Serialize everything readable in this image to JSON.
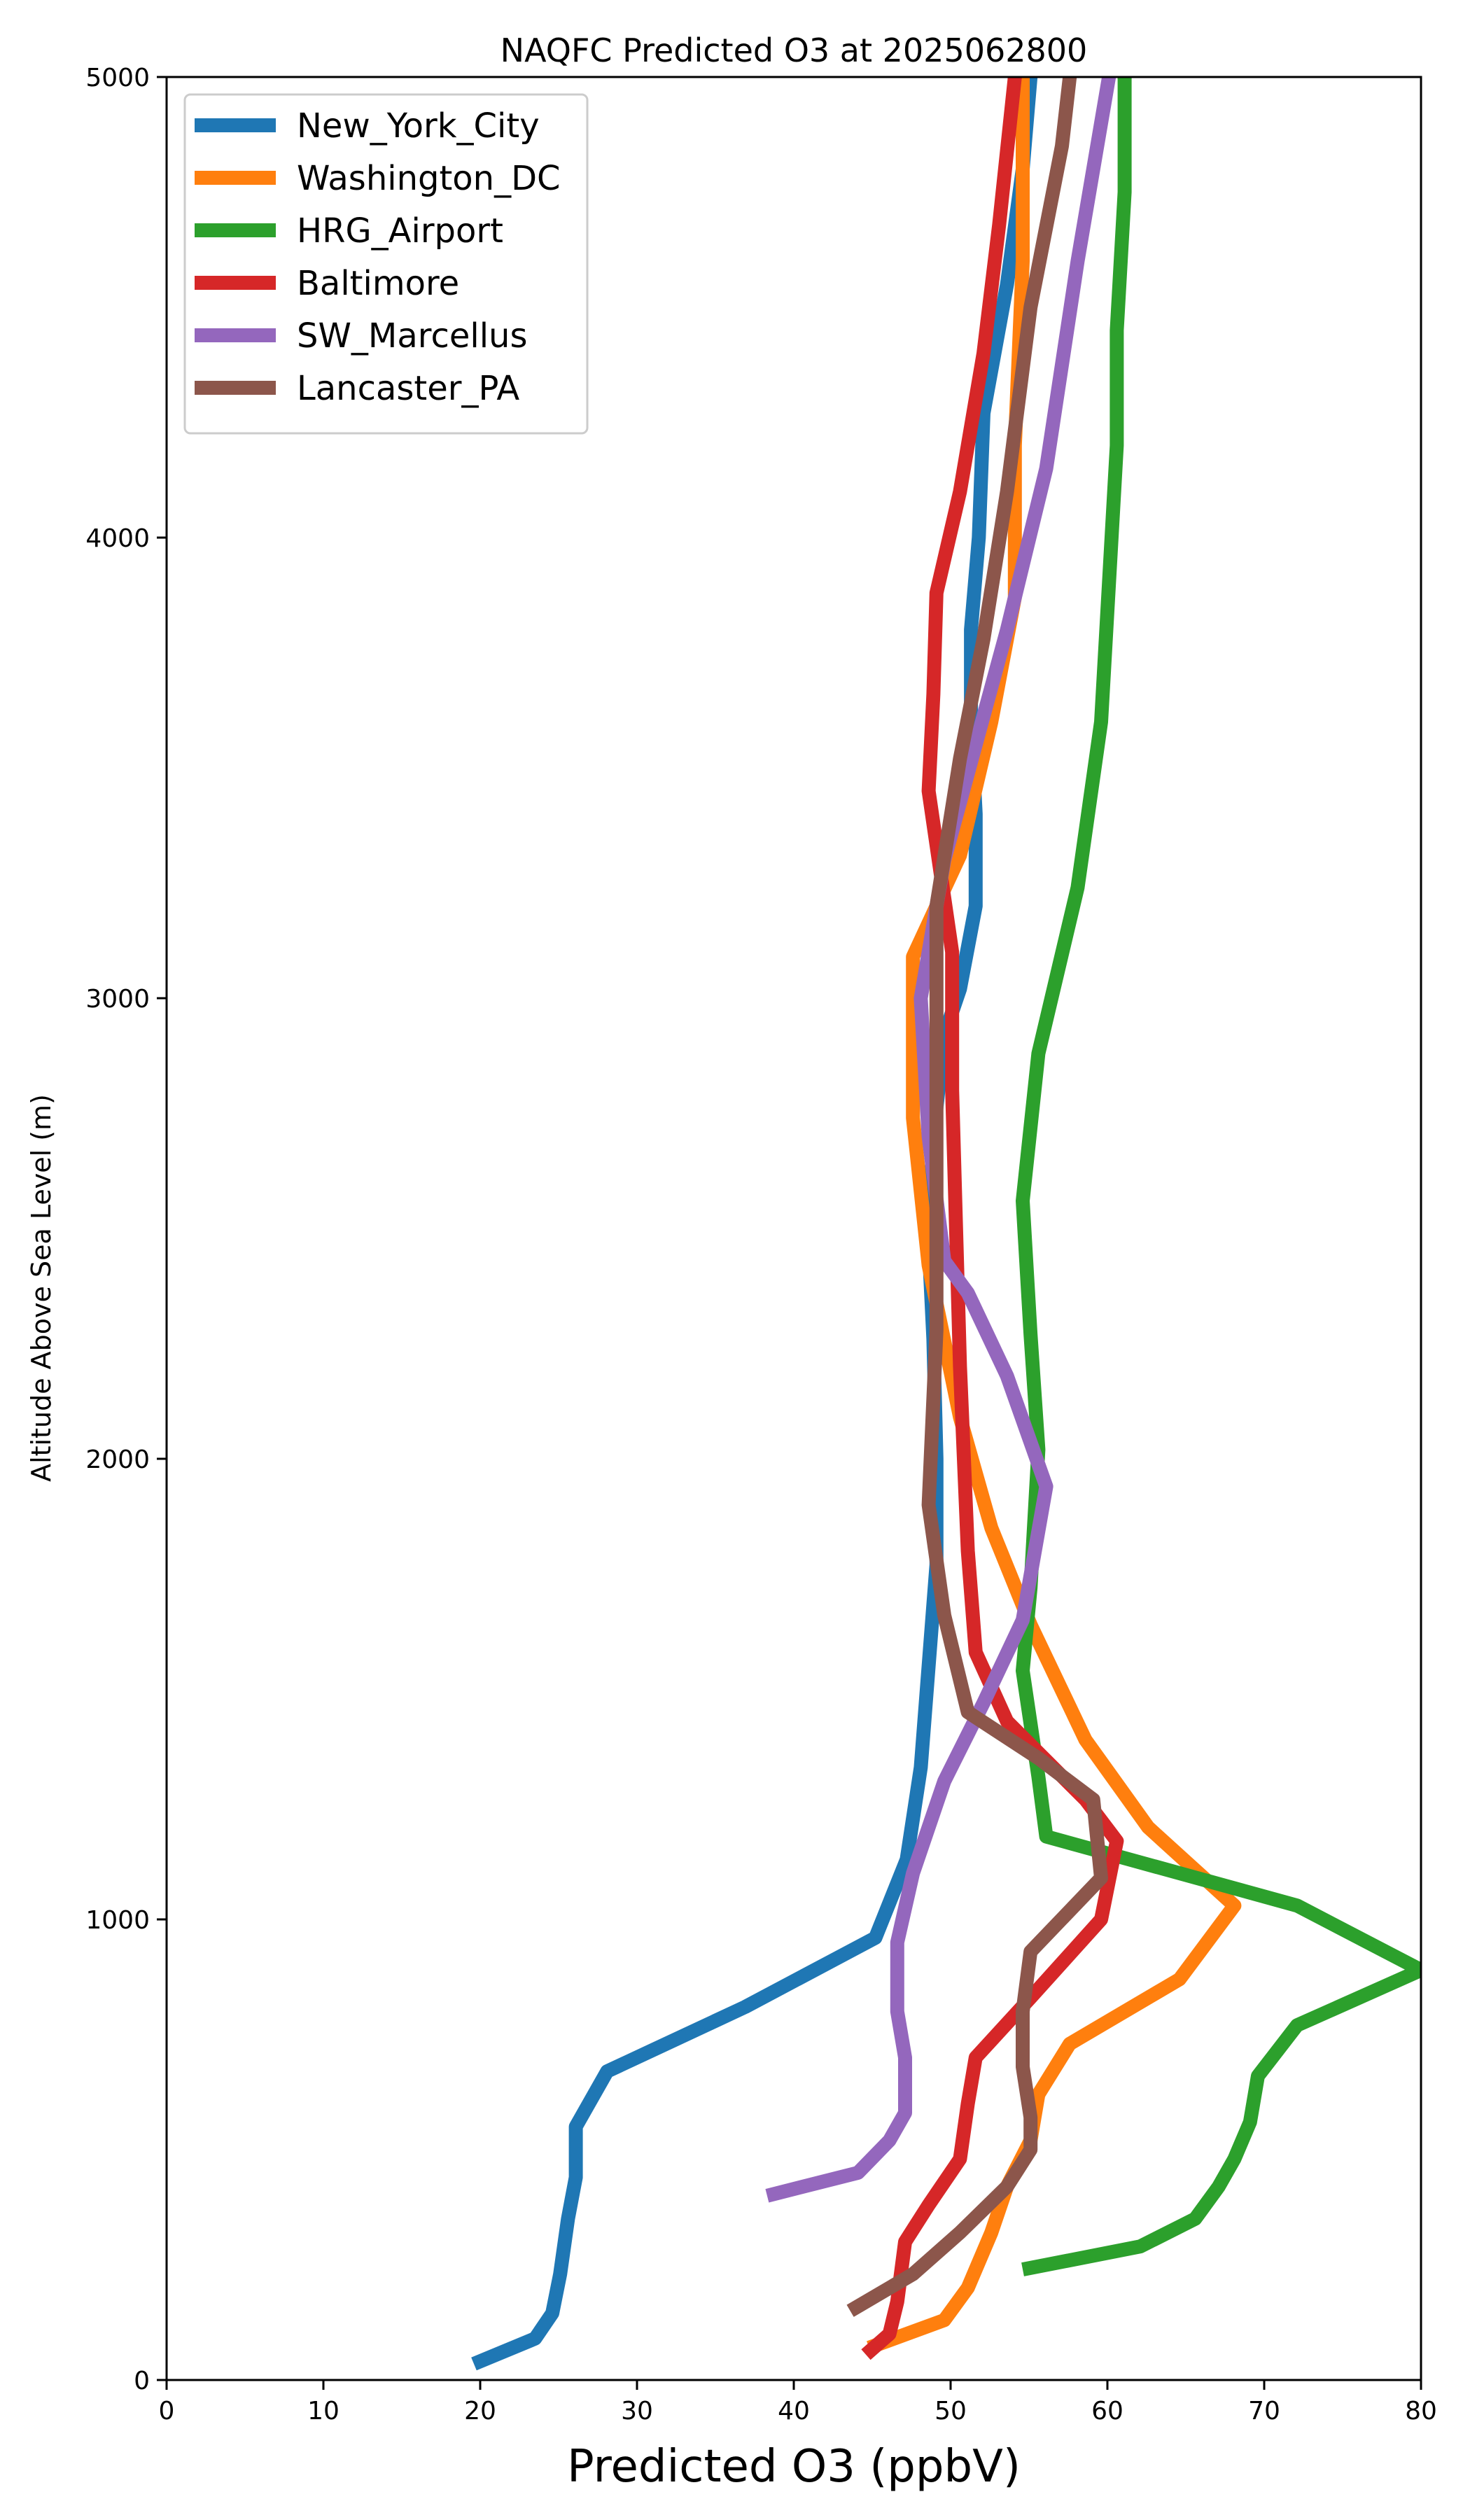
{
  "chart_data": {
    "type": "line",
    "title": "NAQFC Predicted O3 at 2025062800",
    "xlabel": "Predicted O3 (ppbV)",
    "ylabel": "Altitude Above Sea Level (m)",
    "xlim": [
      0,
      80
    ],
    "ylim": [
      0,
      5000
    ],
    "xticks": [
      0,
      10,
      20,
      30,
      40,
      50,
      60,
      70,
      80
    ],
    "yticks": [
      0,
      1000,
      2000,
      3000,
      4000,
      5000
    ],
    "grid": false,
    "legend_position": "upper left",
    "series": [
      {
        "name": "New_York_City",
        "color": "#1f77b4",
        "points": [
          [
            19.6,
            35
          ],
          [
            23.5,
            90
          ],
          [
            24.6,
            145
          ],
          [
            25.1,
            230
          ],
          [
            25.6,
            350
          ],
          [
            26.1,
            440
          ],
          [
            26.1,
            550
          ],
          [
            28.1,
            670
          ],
          [
            36.9,
            810
          ],
          [
            45.2,
            960
          ],
          [
            47.2,
            1130
          ],
          [
            48.1,
            1330
          ],
          [
            48.6,
            1550
          ],
          [
            49.1,
            1770
          ],
          [
            49.1,
            2000
          ],
          [
            48.9,
            2260
          ],
          [
            48.6,
            2470
          ],
          [
            48.9,
            2700
          ],
          [
            49.6,
            2920
          ],
          [
            50.6,
            3020
          ],
          [
            51.6,
            3200
          ],
          [
            51.6,
            3400
          ],
          [
            51.3,
            3600
          ],
          [
            51.3,
            3800
          ],
          [
            51.8,
            4000
          ],
          [
            52.1,
            4270
          ],
          [
            53.6,
            4550
          ],
          [
            54.6,
            4800
          ],
          [
            55.1,
            5000
          ]
        ]
      },
      {
        "name": "Washington_DC",
        "color": "#ff7f0e",
        "points": [
          [
            44.8,
            70
          ],
          [
            49.6,
            130
          ],
          [
            51.1,
            200
          ],
          [
            52.6,
            320
          ],
          [
            53.6,
            420
          ],
          [
            55.1,
            520
          ],
          [
            55.6,
            620
          ],
          [
            57.6,
            730
          ],
          [
            64.6,
            870
          ],
          [
            68.1,
            1030
          ],
          [
            62.6,
            1200
          ],
          [
            58.6,
            1390
          ],
          [
            55.1,
            1640
          ],
          [
            52.6,
            1850
          ],
          [
            50.6,
            2090
          ],
          [
            48.6,
            2420
          ],
          [
            47.6,
            2740
          ],
          [
            47.6,
            3090
          ],
          [
            50.6,
            3310
          ],
          [
            52.6,
            3600
          ],
          [
            54.1,
            3870
          ],
          [
            54.1,
            4200
          ],
          [
            54.6,
            4600
          ],
          [
            54.6,
            5000
          ]
        ]
      },
      {
        "name": "HRG_Airport",
        "color": "#2ca02c",
        "points": [
          [
            54.6,
            240
          ],
          [
            62.1,
            290
          ],
          [
            65.6,
            350
          ],
          [
            67.1,
            420
          ],
          [
            68.1,
            480
          ],
          [
            69.1,
            560
          ],
          [
            69.6,
            660
          ],
          [
            72.1,
            770
          ],
          [
            80,
            890
          ],
          [
            72.1,
            1030
          ],
          [
            56.1,
            1180
          ],
          [
            55.6,
            1310
          ],
          [
            54.6,
            1540
          ],
          [
            55.1,
            1720
          ],
          [
            55.6,
            2020
          ],
          [
            55.1,
            2270
          ],
          [
            54.6,
            2560
          ],
          [
            55.6,
            2880
          ],
          [
            58.1,
            3240
          ],
          [
            59.6,
            3600
          ],
          [
            60.1,
            3900
          ],
          [
            60.6,
            4200
          ],
          [
            60.6,
            4450
          ],
          [
            61.1,
            4750
          ],
          [
            61.1,
            5000
          ]
        ]
      },
      {
        "name": "Baltimore",
        "color": "#d62728",
        "points": [
          [
            44.6,
            55
          ],
          [
            46.1,
            100
          ],
          [
            46.6,
            170
          ],
          [
            47.1,
            300
          ],
          [
            48.6,
            380
          ],
          [
            50.6,
            480
          ],
          [
            51.1,
            600
          ],
          [
            51.6,
            700
          ],
          [
            55.1,
            830
          ],
          [
            59.6,
            1000
          ],
          [
            60.6,
            1170
          ],
          [
            58.6,
            1260
          ],
          [
            53.6,
            1430
          ],
          [
            51.6,
            1580
          ],
          [
            51.1,
            1800
          ],
          [
            50.6,
            2200
          ],
          [
            50.1,
            2800
          ],
          [
            50.1,
            3100
          ],
          [
            48.6,
            3450
          ],
          [
            48.9,
            3660
          ],
          [
            49.1,
            3880
          ],
          [
            50.6,
            4100
          ],
          [
            52.1,
            4400
          ],
          [
            53.1,
            4680
          ],
          [
            54.1,
            5000
          ]
        ]
      },
      {
        "name": "SW_Marcellus",
        "color": "#9467bd",
        "points": [
          [
            38.3,
            400
          ],
          [
            44.1,
            450
          ],
          [
            46.1,
            520
          ],
          [
            47.1,
            580
          ],
          [
            47.1,
            700
          ],
          [
            46.6,
            800
          ],
          [
            46.6,
            950
          ],
          [
            47.6,
            1100
          ],
          [
            49.6,
            1300
          ],
          [
            52.1,
            1470
          ],
          [
            54.6,
            1650
          ],
          [
            56.1,
            1940
          ],
          [
            53.6,
            2180
          ],
          [
            51.1,
            2360
          ],
          [
            49.6,
            2430
          ],
          [
            48.6,
            2700
          ],
          [
            48.1,
            3000
          ],
          [
            49.6,
            3300
          ],
          [
            51.6,
            3550
          ],
          [
            53.6,
            3800
          ],
          [
            56.1,
            4150
          ],
          [
            58.1,
            4600
          ],
          [
            60.1,
            5000
          ]
        ]
      },
      {
        "name": "Lancaster_PA",
        "color": "#8c564b",
        "points": [
          [
            43.6,
            150
          ],
          [
            47.6,
            230
          ],
          [
            50.6,
            320
          ],
          [
            53.6,
            420
          ],
          [
            55.1,
            500
          ],
          [
            55.1,
            570
          ],
          [
            54.6,
            680
          ],
          [
            54.6,
            800
          ],
          [
            55.1,
            930
          ],
          [
            59.6,
            1090
          ],
          [
            59.1,
            1260
          ],
          [
            55.6,
            1350
          ],
          [
            51.1,
            1450
          ],
          [
            49.6,
            1660
          ],
          [
            48.6,
            1900
          ],
          [
            49.1,
            2280
          ],
          [
            49.1,
            2800
          ],
          [
            49.1,
            3200
          ],
          [
            50.6,
            3520
          ],
          [
            52.1,
            3780
          ],
          [
            53.6,
            4100
          ],
          [
            55.1,
            4500
          ],
          [
            57.1,
            4850
          ],
          [
            57.6,
            5000
          ]
        ]
      }
    ]
  }
}
